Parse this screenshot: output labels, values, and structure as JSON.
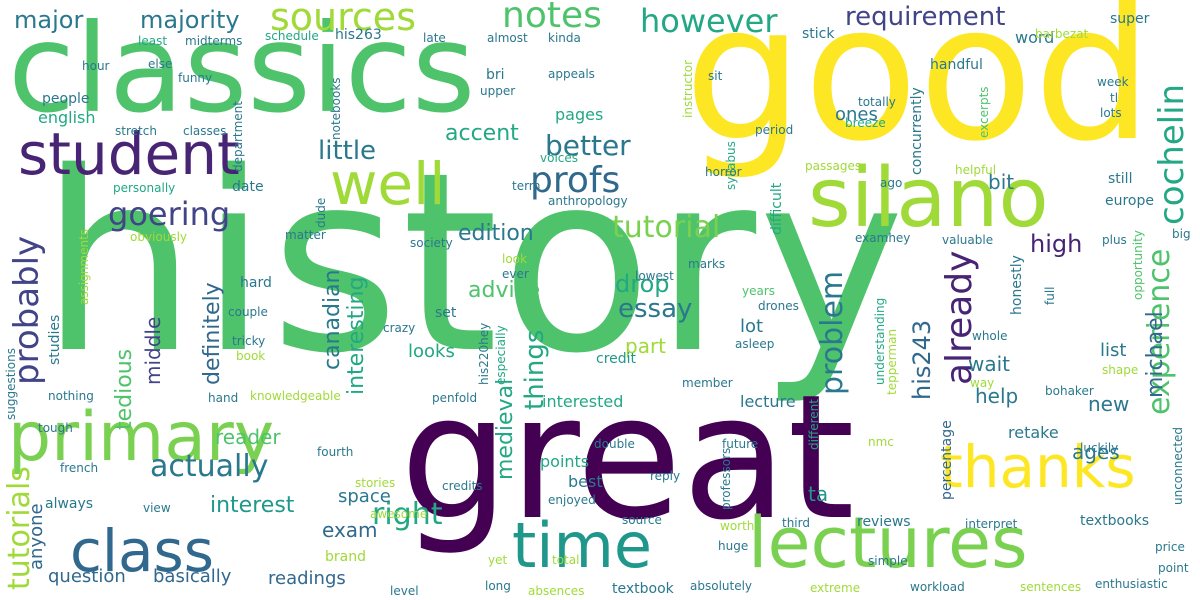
{
  "words": [
    {
      "text": "history",
      "color": "#4ec36b"
    },
    {
      "text": "good",
      "color": "#fde725"
    },
    {
      "text": "classics",
      "color": "#4ec36b"
    },
    {
      "text": "great",
      "color": "#440154"
    },
    {
      "text": "lectures",
      "color": "#7ad151"
    },
    {
      "text": "primary",
      "color": "#7ad151"
    },
    {
      "text": "time",
      "color": "#1f988b"
    },
    {
      "text": "class",
      "color": "#31688e"
    },
    {
      "text": "silano",
      "color": "#a0da39"
    },
    {
      "text": "student",
      "color": "#482475"
    },
    {
      "text": "thanks",
      "color": "#fde725"
    },
    {
      "text": "well",
      "color": "#a0da39"
    },
    {
      "text": "sources",
      "color": "#a0da39"
    },
    {
      "text": "notes",
      "color": "#4ec36b"
    },
    {
      "text": "however",
      "color": "#22a884"
    },
    {
      "text": "requirement",
      "color": "#414487"
    },
    {
      "text": "majority",
      "color": "#2a788e"
    },
    {
      "text": "major",
      "color": "#2a788e"
    },
    {
      "text": "goering",
      "color": "#414487"
    },
    {
      "text": "profs",
      "color": "#31688e"
    },
    {
      "text": "actually",
      "color": "#2a788e"
    },
    {
      "text": "tutorial",
      "color": "#7ad151"
    },
    {
      "text": "better",
      "color": "#2a788e"
    },
    {
      "text": "little",
      "color": "#2a788e"
    },
    {
      "text": "accent",
      "color": "#22a884"
    },
    {
      "text": "probably",
      "color": "#414487"
    },
    {
      "text": "tutorials",
      "color": "#a0da39"
    },
    {
      "text": "cochelin",
      "color": "#22a884"
    },
    {
      "text": "experience",
      "color": "#4ec36b"
    },
    {
      "text": "already",
      "color": "#482475"
    },
    {
      "text": "problem",
      "color": "#2a788e"
    },
    {
      "text": "michael",
      "color": "#31688e"
    },
    {
      "text": "his243",
      "color": "#31688e"
    },
    {
      "text": "right",
      "color": "#22a884"
    },
    {
      "text": "interest",
      "color": "#1f988b"
    },
    {
      "text": "essay",
      "color": "#2a788e"
    },
    {
      "text": "edition",
      "color": "#2a788e"
    },
    {
      "text": "advice",
      "color": "#4ec36b"
    },
    {
      "text": "drop",
      "color": "#22a884"
    },
    {
      "text": "high",
      "color": "#482475"
    },
    {
      "text": "things",
      "color": "#22a884"
    },
    {
      "text": "part",
      "color": "#a0da39"
    },
    {
      "text": "exam",
      "color": "#31688e"
    },
    {
      "text": "reader",
      "color": "#4ec36b"
    },
    {
      "text": "medieval",
      "color": "#22a884"
    },
    {
      "text": "canadian",
      "color": "#2a788e"
    },
    {
      "text": "interesting",
      "color": "#22a884"
    },
    {
      "text": "definitely",
      "color": "#31688e"
    },
    {
      "text": "tedious",
      "color": "#4ec36b"
    },
    {
      "text": "middle",
      "color": "#414487"
    },
    {
      "text": "question",
      "color": "#31688e"
    },
    {
      "text": "basically",
      "color": "#31688e"
    },
    {
      "text": "readings",
      "color": "#31688e"
    },
    {
      "text": "anyone",
      "color": "#31688e"
    },
    {
      "text": "space",
      "color": "#2a788e"
    },
    {
      "text": "ages",
      "color": "#2a788e"
    },
    {
      "text": "new",
      "color": "#2a788e"
    },
    {
      "text": "help",
      "color": "#2a788e"
    },
    {
      "text": "wait",
      "color": "#2a788e"
    },
    {
      "text": "bit",
      "color": "#2a788e"
    },
    {
      "text": "list",
      "color": "#2a788e"
    },
    {
      "text": "retake",
      "color": "#2a788e"
    },
    {
      "text": "lot",
      "color": "#2a788e"
    },
    {
      "text": "ta",
      "color": "#1f988b"
    },
    {
      "text": "points",
      "color": "#22a884"
    },
    {
      "text": "best",
      "color": "#2a788e"
    },
    {
      "text": "looks",
      "color": "#22a884"
    },
    {
      "text": "lecture",
      "color": "#2a788e"
    },
    {
      "text": "interested",
      "color": "#22a884"
    },
    {
      "text": "word",
      "color": "#2a788e"
    },
    {
      "text": "ones",
      "color": "#2a788e"
    },
    {
      "text": "pages",
      "color": "#22a884"
    },
    {
      "text": "people",
      "color": "#2a788e"
    },
    {
      "text": "english",
      "color": "#22a884"
    },
    {
      "text": "still",
      "color": "#2a788e"
    },
    {
      "text": "date",
      "color": "#2a788e"
    },
    {
      "text": "hard",
      "color": "#2a788e"
    },
    {
      "text": "studies",
      "color": "#2a788e"
    },
    {
      "text": "always",
      "color": "#2a788e"
    },
    {
      "text": "brand",
      "color": "#a0da39"
    },
    {
      "text": "textbooks",
      "color": "#2a788e"
    },
    {
      "text": "reviews",
      "color": "#2a788e"
    },
    {
      "text": "honestly",
      "color": "#2a788e"
    },
    {
      "text": "concurrently",
      "color": "#2a788e"
    },
    {
      "text": "percentage",
      "color": "#31688e"
    },
    {
      "text": "textbook",
      "color": "#2a788e"
    },
    {
      "text": "credit",
      "color": "#1f988b"
    },
    {
      "text": "set",
      "color": "#2a788e"
    },
    {
      "text": "europe",
      "color": "#2a788e"
    },
    {
      "text": "his263",
      "color": "#2a788e"
    },
    {
      "text": "super",
      "color": "#2a788e"
    },
    {
      "text": "stick",
      "color": "#2a788e"
    },
    {
      "text": "handful",
      "color": "#2a788e"
    },
    {
      "text": "almost",
      "color": "#2a788e"
    },
    {
      "text": "late",
      "color": "#2a788e"
    },
    {
      "text": "kinda",
      "color": "#2a788e"
    },
    {
      "text": "schedule",
      "color": "#22a884"
    },
    {
      "text": "hour",
      "color": "#2a788e"
    },
    {
      "text": "least",
      "color": "#22a884"
    },
    {
      "text": "midterms",
      "color": "#2a788e"
    },
    {
      "text": "else",
      "color": "#2a788e"
    },
    {
      "text": "funny",
      "color": "#2a788e"
    },
    {
      "text": "bri",
      "color": "#2a788e"
    },
    {
      "text": "upper",
      "color": "#2a788e"
    },
    {
      "text": "appeals",
      "color": "#2a788e"
    },
    {
      "text": "instructor",
      "color": "#a0da39"
    },
    {
      "text": "syllabus",
      "color": "#22a884"
    },
    {
      "text": "sit",
      "color": "#2a788e"
    },
    {
      "text": "barbezat",
      "color": "#a0da39"
    },
    {
      "text": "week",
      "color": "#2a788e"
    },
    {
      "text": "totally",
      "color": "#2a788e"
    },
    {
      "text": "tl",
      "color": "#2a788e"
    },
    {
      "text": "lots",
      "color": "#2a788e"
    },
    {
      "text": "breeze",
      "color": "#22a884"
    },
    {
      "text": "period",
      "color": "#2a788e"
    },
    {
      "text": "excerpts",
      "color": "#4ec36b"
    },
    {
      "text": "stretch",
      "color": "#2a788e"
    },
    {
      "text": "classes",
      "color": "#2a788e"
    },
    {
      "text": "department",
      "color": "#2a788e"
    },
    {
      "text": "notebooks",
      "color": "#2a788e"
    },
    {
      "text": "difficult",
      "color": "#22a884"
    },
    {
      "text": "voices",
      "color": "#22a884"
    },
    {
      "text": "horror",
      "color": "#2a788e"
    },
    {
      "text": "helpful",
      "color": "#a0da39"
    },
    {
      "text": "passages",
      "color": "#a0da39"
    },
    {
      "text": "ago",
      "color": "#2a788e"
    },
    {
      "text": "personally",
      "color": "#22a884"
    },
    {
      "text": "term",
      "color": "#2a788e"
    },
    {
      "text": "anthropology",
      "color": "#2a788e"
    },
    {
      "text": "obviously",
      "color": "#a0da39"
    },
    {
      "text": "dude",
      "color": "#2a788e"
    },
    {
      "text": "society",
      "color": "#2a788e"
    },
    {
      "text": "matter",
      "color": "#2a788e"
    },
    {
      "text": "examhey",
      "color": "#2a788e"
    },
    {
      "text": "valuable",
      "color": "#2a788e"
    },
    {
      "text": "plus",
      "color": "#2a788e"
    },
    {
      "text": "big",
      "color": "#2a788e"
    },
    {
      "text": "assignments",
      "color": "#a0da39"
    },
    {
      "text": "look",
      "color": "#a0da39"
    },
    {
      "text": "ever",
      "color": "#2a788e"
    },
    {
      "text": "marks",
      "color": "#2a788e"
    },
    {
      "text": "lowest",
      "color": "#2a788e"
    },
    {
      "text": "years",
      "color": "#4ec36b"
    },
    {
      "text": "drones",
      "color": "#2a788e"
    },
    {
      "text": "full",
      "color": "#2a788e"
    },
    {
      "text": "opportunity",
      "color": "#4ec36b"
    },
    {
      "text": "understanding",
      "color": "#22a884"
    },
    {
      "text": "tepperman",
      "color": "#a0da39"
    },
    {
      "text": "whole",
      "color": "#2a788e"
    },
    {
      "text": "shape",
      "color": "#a0da39"
    },
    {
      "text": "suggestions",
      "color": "#2a788e"
    },
    {
      "text": "couple",
      "color": "#2a788e"
    },
    {
      "text": "crazy",
      "color": "#2a788e"
    },
    {
      "text": "especially",
      "color": "#22a884"
    },
    {
      "text": "his220hey",
      "color": "#2a788e"
    },
    {
      "text": "tricky",
      "color": "#2a788e"
    },
    {
      "text": "book",
      "color": "#a0da39"
    },
    {
      "text": "asleep",
      "color": "#2a788e"
    },
    {
      "text": "member",
      "color": "#2a788e"
    },
    {
      "text": "bohaker",
      "color": "#2a788e"
    },
    {
      "text": "way",
      "color": "#a0da39"
    },
    {
      "text": "nothing",
      "color": "#2a788e"
    },
    {
      "text": "knowledgeable",
      "color": "#a0da39"
    },
    {
      "text": "hand",
      "color": "#2a788e"
    },
    {
      "text": "penfold",
      "color": "#2a788e"
    },
    {
      "text": "tough",
      "color": "#2a788e"
    },
    {
      "text": "different",
      "color": "#22a884"
    },
    {
      "text": "luckily",
      "color": "#2a788e"
    },
    {
      "text": "nmc",
      "color": "#a0da39"
    },
    {
      "text": "future",
      "color": "#2a788e"
    },
    {
      "text": "double",
      "color": "#2a788e"
    },
    {
      "text": "french",
      "color": "#2a788e"
    },
    {
      "text": "fourth",
      "color": "#2a788e"
    },
    {
      "text": "unconnected",
      "color": "#2a788e"
    },
    {
      "text": "stories",
      "color": "#a0da39"
    },
    {
      "text": "credits",
      "color": "#2a788e"
    },
    {
      "text": "reply",
      "color": "#2a788e"
    },
    {
      "text": "professors",
      "color": "#2a788e"
    },
    {
      "text": "enjoyed",
      "color": "#2a788e"
    },
    {
      "text": "awesome",
      "color": "#a0da39"
    },
    {
      "text": "view",
      "color": "#2a788e"
    },
    {
      "text": "source",
      "color": "#2a788e"
    },
    {
      "text": "worth",
      "color": "#a0da39"
    },
    {
      "text": "third",
      "color": "#2a788e"
    },
    {
      "text": "interpret",
      "color": "#2a788e"
    },
    {
      "text": "huge",
      "color": "#2a788e"
    },
    {
      "text": "simple",
      "color": "#2a788e"
    },
    {
      "text": "price",
      "color": "#2a788e"
    },
    {
      "text": "point",
      "color": "#2a788e"
    },
    {
      "text": "yet",
      "color": "#a0da39"
    },
    {
      "text": "total",
      "color": "#a0da39"
    },
    {
      "text": "long",
      "color": "#2a788e"
    },
    {
      "text": "level",
      "color": "#2a788e"
    },
    {
      "text": "absences",
      "color": "#a0da39"
    },
    {
      "text": "absolutely",
      "color": "#2a788e"
    },
    {
      "text": "extreme",
      "color": "#a0da39"
    },
    {
      "text": "workload",
      "color": "#2a788e"
    },
    {
      "text": "sentences",
      "color": "#a0da39"
    },
    {
      "text": "enthusiastic",
      "color": "#2a788e"
    }
  ]
}
